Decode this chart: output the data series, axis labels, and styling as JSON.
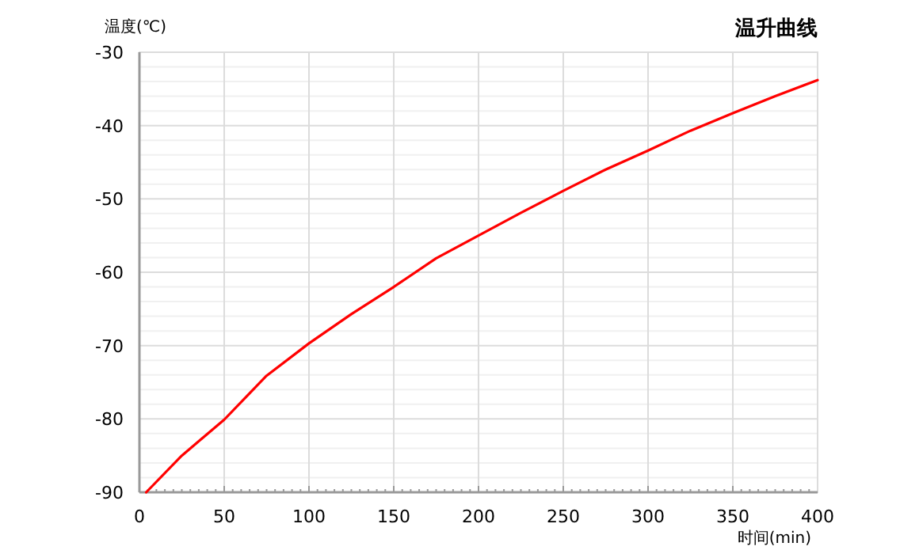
{
  "chart_data": {
    "type": "line",
    "title": "温升曲线",
    "xlabel": "时间(min)",
    "ylabel": "温度(℃)",
    "x": [
      4,
      25,
      50,
      75,
      100,
      125,
      150,
      175,
      200,
      225,
      250,
      275,
      300,
      325,
      350,
      375,
      400
    ],
    "series": [
      {
        "color": "#ff0000",
        "values": [
          -90,
          -85.0,
          -80.1,
          -74.1,
          -69.7,
          -65.7,
          -62.0,
          -58.1,
          -55.0,
          -51.9,
          -48.9,
          -46.0,
          -43.4,
          -40.7,
          -38.3,
          -36.0,
          -33.8
        ]
      }
    ],
    "xlim": [
      0,
      400
    ],
    "ylim": [
      -90,
      -30
    ],
    "xticks": [
      0,
      50,
      100,
      150,
      200,
      250,
      300,
      350,
      400
    ],
    "yticks": [
      -90,
      -80,
      -70,
      -60,
      -50,
      -40,
      -30
    ],
    "grid": true
  }
}
